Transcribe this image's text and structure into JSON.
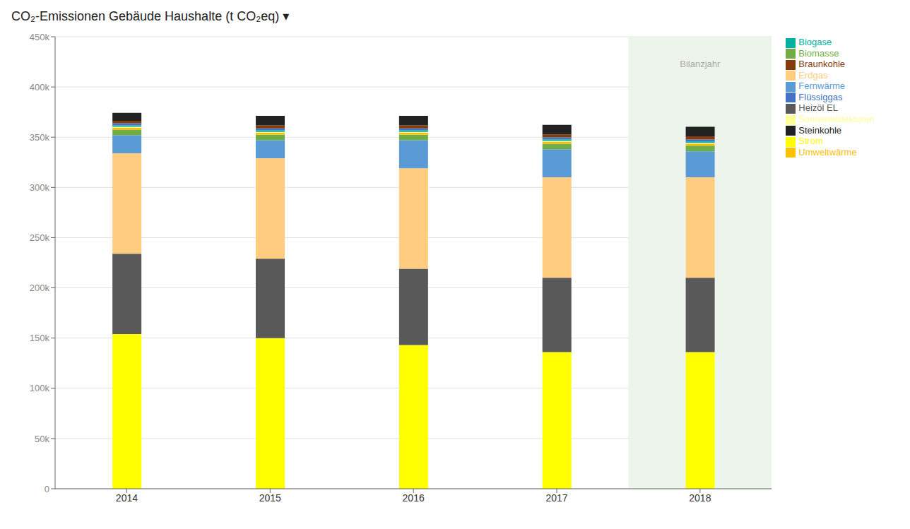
{
  "chart_data": {
    "type": "bar",
    "stacked": true,
    "title": "CO₂-Emissionen Gebäude Haushalte (t CO₂eq) ▾",
    "categories": [
      "2014",
      "2015",
      "2016",
      "2017",
      "2018"
    ],
    "series": [
      {
        "name": "Strom",
        "color": "#ffff00",
        "values": [
          154000,
          150000,
          143000,
          136000,
          136000
        ]
      },
      {
        "name": "Heizöl EL",
        "color": "#595959",
        "values": [
          80000,
          79000,
          76000,
          74000,
          74000
        ]
      },
      {
        "name": "Erdgas",
        "color": "#ffcc80",
        "values": [
          100000,
          100000,
          100000,
          100000,
          100000
        ]
      },
      {
        "name": "Fernwärme",
        "color": "#5b9bd5",
        "values": [
          18000,
          18000,
          28000,
          28000,
          26000
        ]
      },
      {
        "name": "Biomasse",
        "color": "#70ad47",
        "values": [
          5500,
          5500,
          5500,
          5500,
          5500
        ]
      },
      {
        "name": "Umweltwärme",
        "color": "#ffc000",
        "values": [
          2000,
          2000,
          2000,
          2000,
          2000
        ]
      },
      {
        "name": "Sonnenkollektoren",
        "color": "#ffff99",
        "values": [
          800,
          800,
          800,
          800,
          800
        ]
      },
      {
        "name": "Biogase",
        "color": "#00b0a0",
        "values": [
          1500,
          1500,
          1500,
          1500,
          1500
        ]
      },
      {
        "name": "Flüssiggas",
        "color": "#4472c4",
        "values": [
          2000,
          2000,
          2000,
          2000,
          2000
        ]
      },
      {
        "name": "Braunkohle",
        "color": "#843c0c",
        "values": [
          2500,
          3000,
          3000,
          3000,
          3000
        ]
      },
      {
        "name": "Steinkohle",
        "color": "#222222",
        "values": [
          8000,
          9500,
          9500,
          9500,
          9500
        ]
      }
    ],
    "ylim": [
      0,
      450000
    ],
    "yticks": [
      0,
      {
        "value": 50000,
        "label": "50k"
      },
      {
        "value": 100000,
        "label": "100k"
      },
      {
        "value": 150000,
        "label": "150k"
      },
      {
        "value": 200000,
        "label": "200k"
      },
      {
        "value": 250000,
        "label": "250k"
      },
      {
        "value": 300000,
        "label": "300k"
      },
      {
        "value": 350000,
        "label": "350k"
      },
      {
        "value": 400000,
        "label": "400k"
      },
      {
        "value": 450000,
        "label": "450k"
      }
    ],
    "grid": true,
    "legend": "upper right",
    "annotations": [
      {
        "text": "Bilanzjahr",
        "x": "2018",
        "y": 430000,
        "color": "#edf4ec"
      }
    ]
  }
}
